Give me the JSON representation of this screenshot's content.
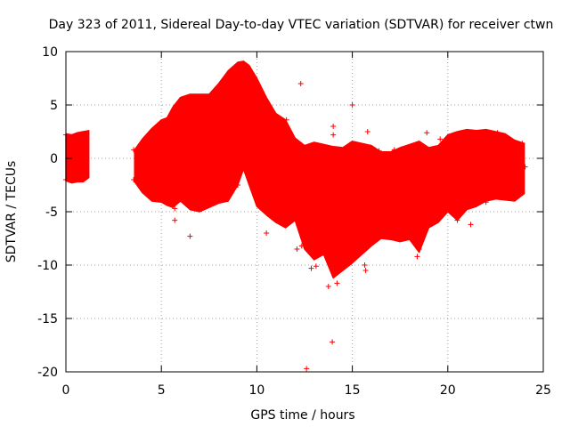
{
  "chart_data": {
    "type": "scatter",
    "title": "Day 323 of 2011, Sidereal Day-to-day VTEC variation (SDTVAR) for receiver ctwn",
    "xlabel": "GPS time / hours",
    "ylabel": "SDTVAR / TECUs",
    "xlim": [
      0,
      25
    ],
    "ylim": [
      -20,
      10
    ],
    "xticks": [
      0,
      5,
      10,
      15,
      20,
      25
    ],
    "yticks": [
      -20,
      -15,
      -10,
      -5,
      0,
      5,
      10
    ],
    "grid": true,
    "marker": "+",
    "color": "#ff0000",
    "series": [
      {
        "name": "SDTVAR",
        "envelope": {
          "segments": [
            {
              "x": [
                0.0,
                0.3,
                0.6,
                0.9,
                1.2
              ],
              "upper": [
                2.3,
                2.2,
                2.4,
                2.5,
                2.6
              ],
              "lower": [
                -2.1,
                -2.3,
                -2.2,
                -2.2,
                -1.8
              ]
            },
            {
              "x": [
                3.6,
                4.0,
                4.5,
                5.0,
                5.3,
                5.6,
                6.0,
                6.5,
                7.0,
                7.5,
                8.0,
                8.5,
                9.0,
                9.3,
                9.6,
                10.0,
                10.5,
                11.0,
                11.5,
                12.0,
                12.5,
                13.0,
                13.5,
                14.0,
                14.5,
                15.0,
                15.5,
                16.0,
                16.5,
                17.0,
                17.5,
                18.0,
                18.5,
                19.0,
                19.5,
                20.0,
                20.5,
                21.0,
                21.5,
                22.0,
                22.5,
                23.0,
                23.5,
                24.0
              ],
              "upper": [
                0.8,
                1.8,
                2.8,
                3.6,
                3.8,
                4.8,
                5.7,
                6.0,
                6.0,
                6.0,
                7.0,
                8.2,
                9.0,
                9.1,
                8.7,
                7.5,
                5.7,
                4.2,
                3.6,
                1.9,
                1.2,
                1.5,
                1.3,
                1.1,
                1.0,
                1.6,
                1.4,
                1.2,
                0.6,
                0.6,
                1.0,
                1.3,
                1.6,
                1.0,
                1.2,
                2.2,
                2.5,
                2.7,
                2.6,
                2.7,
                2.5,
                2.3,
                1.7,
                1.4
              ],
              "lower": [
                -2.2,
                -3.2,
                -4.0,
                -4.1,
                -4.4,
                -4.6,
                -4.0,
                -4.8,
                -5.0,
                -4.6,
                -4.2,
                -4.0,
                -2.5,
                -1.0,
                -2.5,
                -4.5,
                -5.3,
                -6.0,
                -6.5,
                -5.8,
                -8.5,
                -9.5,
                -9.0,
                -11.2,
                -10.5,
                -9.8,
                -9.0,
                -8.2,
                -7.5,
                -7.6,
                -7.8,
                -7.6,
                -8.8,
                -6.5,
                -6.0,
                -5.0,
                -5.8,
                -4.8,
                -4.5,
                -4.0,
                -3.8,
                -3.9,
                -4.0,
                -3.3
              ]
            }
          ]
        },
        "points": [
          [
            12.3,
            7.0
          ],
          [
            12.6,
            -19.7
          ],
          [
            13.95,
            -17.2
          ],
          [
            6.5,
            -7.3
          ],
          [
            14.0,
            3.0
          ],
          [
            14.0,
            2.2
          ],
          [
            15.0,
            5.0
          ],
          [
            15.2,
            0.5
          ],
          [
            15.2,
            -8.7
          ],
          [
            15.7,
            -8.1
          ],
          [
            15.7,
            -10.5
          ],
          [
            15.8,
            2.5
          ],
          [
            18.9,
            2.4
          ],
          [
            21.2,
            -6.2
          ],
          [
            22.6,
            2.4
          ],
          [
            18.4,
            -9.2
          ],
          [
            5.7,
            -4.7
          ],
          [
            5.7,
            -5.8
          ],
          [
            12.85,
            -10.3
          ],
          [
            13.75,
            -12.0
          ],
          [
            11.55,
            3.6
          ],
          [
            11.6,
            2.5
          ],
          [
            9.0,
            -2.5
          ],
          [
            8.55,
            -2.4
          ],
          [
            10.5,
            -7.0
          ],
          [
            16.4,
            0.7
          ],
          [
            17.2,
            0.8
          ],
          [
            19.6,
            1.8
          ],
          [
            3.55,
            0.8
          ],
          [
            3.55,
            -2.0
          ],
          [
            0.0,
            2.2
          ],
          [
            0.0,
            -2.0
          ],
          [
            12.1,
            -8.5
          ],
          [
            12.35,
            -8.2
          ],
          [
            13.1,
            -10.1
          ],
          [
            14.2,
            -11.7
          ],
          [
            15.65,
            -10.0
          ],
          [
            16.2,
            -7.7
          ],
          [
            16.5,
            -7.3
          ],
          [
            18.5,
            -8.5
          ],
          [
            20.5,
            -5.8
          ],
          [
            22.0,
            -4.1
          ],
          [
            23.9,
            -3.2
          ],
          [
            23.9,
            1.4
          ],
          [
            24.05,
            -0.8
          ]
        ]
      }
    ]
  }
}
